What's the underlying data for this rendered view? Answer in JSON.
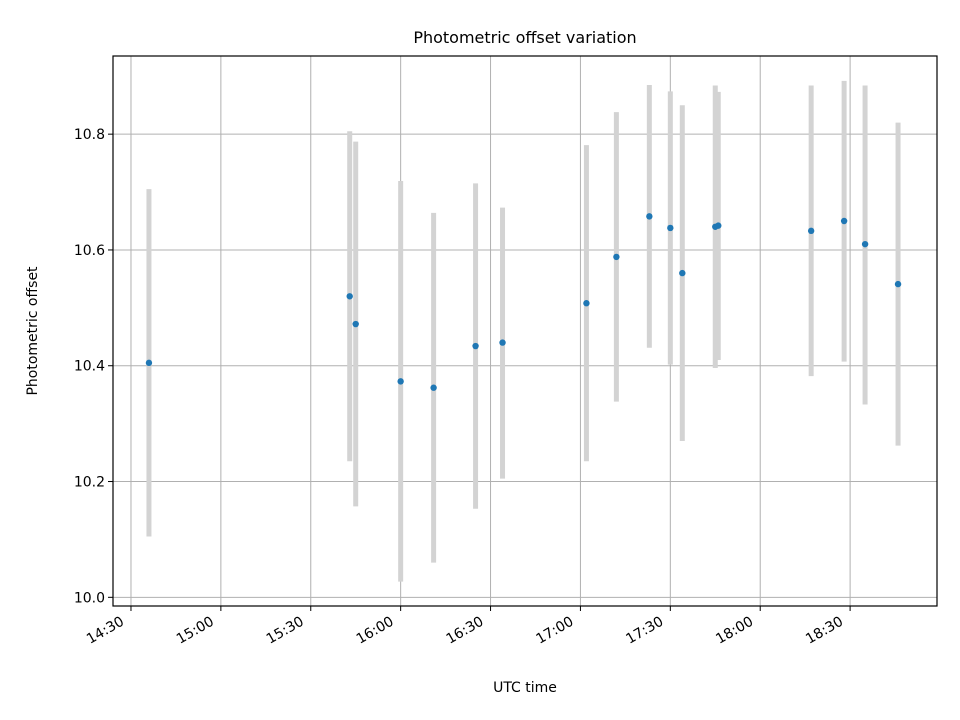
{
  "chart_data": {
    "type": "scatter",
    "title": "Photometric offset variation",
    "xlabel": "UTC time",
    "ylabel": "Photometric offset",
    "x_tick_labels": [
      "14:30",
      "15:00",
      "15:30",
      "16:00",
      "16:30",
      "17:00",
      "17:30",
      "18:00",
      "18:30"
    ],
    "x_tick_minutes": [
      870,
      900,
      930,
      960,
      990,
      1020,
      1050,
      1080,
      1110
    ],
    "xlim_minutes": [
      864,
      1139
    ],
    "y_ticks": [
      10.0,
      10.2,
      10.4,
      10.6,
      10.8
    ],
    "y_tick_labels": [
      "10.0",
      "10.2",
      "10.4",
      "10.6",
      "10.8"
    ],
    "ylim": [
      9.985,
      10.935
    ],
    "grid": true,
    "point_color": "#1f77b4",
    "errorbar_color": "#d3d3d3",
    "points": [
      {
        "time": "14:36",
        "y": 10.405,
        "lo": 10.105,
        "hi": 10.705
      },
      {
        "time": "15:43",
        "y": 10.52,
        "lo": 10.235,
        "hi": 10.805
      },
      {
        "time": "15:45",
        "y": 10.472,
        "lo": 10.157,
        "hi": 10.787
      },
      {
        "time": "16:00",
        "y": 10.373,
        "lo": 10.027,
        "hi": 10.719
      },
      {
        "time": "16:11",
        "y": 10.362,
        "lo": 10.06,
        "hi": 10.664
      },
      {
        "time": "16:25",
        "y": 10.434,
        "lo": 10.153,
        "hi": 10.715
      },
      {
        "time": "16:34",
        "y": 10.44,
        "lo": 10.205,
        "hi": 10.673
      },
      {
        "time": "17:02",
        "y": 10.508,
        "lo": 10.235,
        "hi": 10.781
      },
      {
        "time": "17:12",
        "y": 10.588,
        "lo": 10.338,
        "hi": 10.838
      },
      {
        "time": "17:23",
        "y": 10.658,
        "lo": 10.431,
        "hi": 10.885
      },
      {
        "time": "17:30",
        "y": 10.638,
        "lo": 10.402,
        "hi": 10.874
      },
      {
        "time": "17:34",
        "y": 10.56,
        "lo": 10.27,
        "hi": 10.85
      },
      {
        "time": "17:45",
        "y": 10.64,
        "lo": 10.396,
        "hi": 10.884
      },
      {
        "time": "17:46",
        "y": 10.642,
        "lo": 10.41,
        "hi": 10.873
      },
      {
        "time": "18:17",
        "y": 10.633,
        "lo": 10.382,
        "hi": 10.884
      },
      {
        "time": "18:28",
        "y": 10.65,
        "lo": 10.407,
        "hi": 10.892
      },
      {
        "time": "18:35",
        "y": 10.61,
        "lo": 10.333,
        "hi": 10.884
      },
      {
        "time": "18:46",
        "y": 10.541,
        "lo": 10.262,
        "hi": 10.82
      }
    ]
  }
}
